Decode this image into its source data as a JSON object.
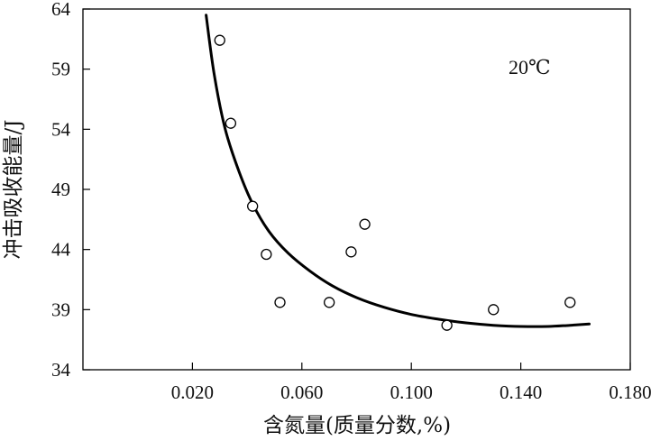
{
  "chart_data": {
    "type": "scatter",
    "xlabel": "含氮量(质量分数,%)",
    "ylabel": "冲击吸收能量/J",
    "annotation": "20℃",
    "xlim": [
      -0.02,
      0.18
    ],
    "ylim": [
      34,
      64
    ],
    "xticks": [
      {
        "value": 0.02,
        "label": "0.020"
      },
      {
        "value": 0.06,
        "label": "0.060"
      },
      {
        "value": 0.1,
        "label": "0.100"
      },
      {
        "value": 0.14,
        "label": "0.140"
      },
      {
        "value": 0.18,
        "label": "0.180"
      }
    ],
    "yticks": [
      {
        "value": 34,
        "label": "34"
      },
      {
        "value": 39,
        "label": "39"
      },
      {
        "value": 44,
        "label": "44"
      },
      {
        "value": 49,
        "label": "49"
      },
      {
        "value": 54,
        "label": "54"
      },
      {
        "value": 59,
        "label": "59"
      },
      {
        "value": 64,
        "label": "64"
      }
    ],
    "points": [
      {
        "x": 0.03,
        "y": 61.4
      },
      {
        "x": 0.034,
        "y": 54.5
      },
      {
        "x": 0.042,
        "y": 47.6
      },
      {
        "x": 0.047,
        "y": 43.6
      },
      {
        "x": 0.052,
        "y": 39.6
      },
      {
        "x": 0.07,
        "y": 39.6
      },
      {
        "x": 0.078,
        "y": 43.8
      },
      {
        "x": 0.083,
        "y": 46.1
      },
      {
        "x": 0.113,
        "y": 37.7
      },
      {
        "x": 0.13,
        "y": 39.0
      },
      {
        "x": 0.158,
        "y": 39.6
      }
    ],
    "curve": [
      {
        "x": 0.025,
        "y": 63.5
      },
      {
        "x": 0.028,
        "y": 58.5
      },
      {
        "x": 0.032,
        "y": 54.0
      },
      {
        "x": 0.037,
        "y": 50.5
      },
      {
        "x": 0.042,
        "y": 47.8
      },
      {
        "x": 0.048,
        "y": 45.5
      },
      {
        "x": 0.055,
        "y": 43.7
      },
      {
        "x": 0.063,
        "y": 42.2
      },
      {
        "x": 0.071,
        "y": 41.0
      },
      {
        "x": 0.08,
        "y": 40.0
      },
      {
        "x": 0.09,
        "y": 39.2
      },
      {
        "x": 0.1,
        "y": 38.6
      },
      {
        "x": 0.11,
        "y": 38.2
      },
      {
        "x": 0.12,
        "y": 37.9
      },
      {
        "x": 0.13,
        "y": 37.7
      },
      {
        "x": 0.14,
        "y": 37.6
      },
      {
        "x": 0.15,
        "y": 37.6
      },
      {
        "x": 0.158,
        "y": 37.7
      },
      {
        "x": 0.165,
        "y": 37.8
      }
    ]
  }
}
